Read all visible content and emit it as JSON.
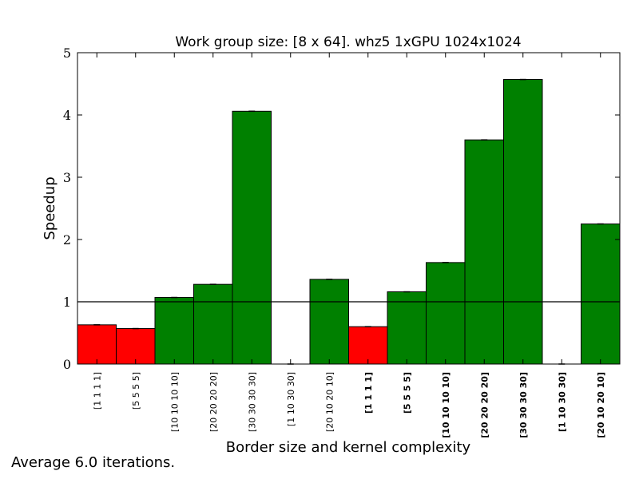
{
  "chart_data": {
    "type": "bar",
    "title": "Work group size: [8 x 64]. whz5 1xGPU 1024x1024",
    "xlabel": "Border size and kernel complexity",
    "ylabel": "Speedup",
    "ylim": [
      0,
      5
    ],
    "yticks": [
      0,
      1,
      2,
      3,
      4,
      5
    ],
    "reference_line": 1,
    "categories": [
      "[1 1 1 1]",
      "[5 5 5 5]",
      "[10 10 10 10]",
      "[20 20 20 20]",
      "[30 30 30 30]",
      "[1 10 30 30]",
      "[20 10 20 10]",
      "[1 1 1 1]",
      "[5 5 5 5]",
      "[10 10 10 10]",
      "[20 20 20 20]",
      "[30 30 30 30]",
      "[1 10 30 30]",
      "[20 10 20 10]"
    ],
    "bold_labels": [
      false,
      false,
      false,
      false,
      false,
      false,
      false,
      true,
      true,
      true,
      true,
      true,
      true,
      true
    ],
    "values": [
      0.63,
      0.57,
      1.07,
      1.28,
      4.06,
      0,
      1.36,
      0.6,
      1.16,
      1.63,
      3.6,
      4.57,
      0,
      2.25
    ],
    "bar_colors": [
      "#ff0000",
      "#ff0000",
      "#008000",
      "#008000",
      "#008000",
      "#008000",
      "#008000",
      "#ff0000",
      "#008000",
      "#008000",
      "#008000",
      "#008000",
      "#008000",
      "#008000"
    ],
    "grid": false
  },
  "footnote": "Average 6.0 iterations."
}
